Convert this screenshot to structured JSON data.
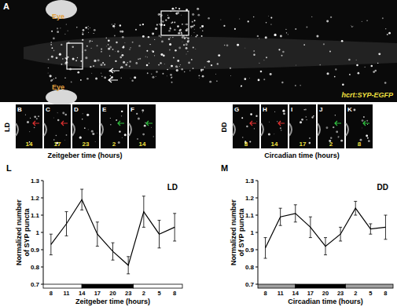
{
  "panels": {
    "A": {
      "letter": "A",
      "eye_labels": [
        "Eye",
        "Eye"
      ],
      "caption": "hcrt:SYP-EGFP"
    },
    "LD": {
      "condition": "LD",
      "letters": [
        "B",
        "C",
        "D",
        "E",
        "F"
      ],
      "times": [
        "14",
        "17",
        "23",
        "2",
        "14"
      ],
      "axis_label": "Zeitgeber time (hours)"
    },
    "DD": {
      "condition": "DD",
      "letters": [
        "G",
        "H",
        "I",
        "J",
        "K"
      ],
      "times": [
        "8",
        "14",
        "17",
        "2",
        "8"
      ],
      "axis_label": "Circadian time (hours)"
    }
  },
  "chart_data": [
    {
      "type": "line",
      "annotations": [
        "L",
        "LD"
      ],
      "x_label": "Zeitgeber time (hours)",
      "y_label": [
        "Normalized number",
        "of SYP puncta"
      ],
      "categories": [
        "8",
        "11",
        "14",
        "17",
        "20",
        "23",
        "2",
        "5",
        "8"
      ],
      "values": [
        0.93,
        1.05,
        1.19,
        0.99,
        0.89,
        0.81,
        1.12,
        0.99,
        1.03
      ],
      "errors": [
        0.06,
        0.07,
        0.06,
        0.07,
        0.05,
        0.05,
        0.09,
        0.08,
        0.08
      ],
      "color": "#000000",
      "ylim": [
        0.7,
        1.3
      ],
      "yticks": [
        0.7,
        0.8,
        0.9,
        1,
        1.1,
        1.2,
        1.3
      ],
      "light_dark": [
        {
          "start": -0.5,
          "end": 2,
          "color": "#ffffff"
        },
        {
          "start": 2,
          "end": 5.33,
          "color": "#000000"
        },
        {
          "start": 5.33,
          "end": 8.5,
          "color": "#ffffff"
        }
      ]
    },
    {
      "type": "line",
      "annotations": [
        "M",
        "DD"
      ],
      "x_label": "Circadian time (hours)",
      "y_label": [
        "Normalized number",
        "of SYP puncta"
      ],
      "categories": [
        "8",
        "11",
        "14",
        "17",
        "20",
        "23",
        "2",
        "5",
        "8"
      ],
      "values": [
        0.91,
        1.09,
        1.11,
        1.03,
        0.92,
        0.99,
        1.14,
        1.02,
        1.03
      ],
      "errors": [
        0.06,
        0.05,
        0.05,
        0.06,
        0.05,
        0.04,
        0.04,
        0.03,
        0.07
      ],
      "color": "#000000",
      "ylim": [
        0.7,
        1.3
      ],
      "yticks": [
        0.7,
        0.8,
        0.9,
        1,
        1.1,
        1.2,
        1.3
      ],
      "light_dark": [
        {
          "start": -0.5,
          "end": 2,
          "color": "#a0a0a0"
        },
        {
          "start": 2,
          "end": 5.33,
          "color": "#000000"
        },
        {
          "start": 5.33,
          "end": 8.5,
          "color": "#a0a0a0"
        }
      ]
    }
  ]
}
